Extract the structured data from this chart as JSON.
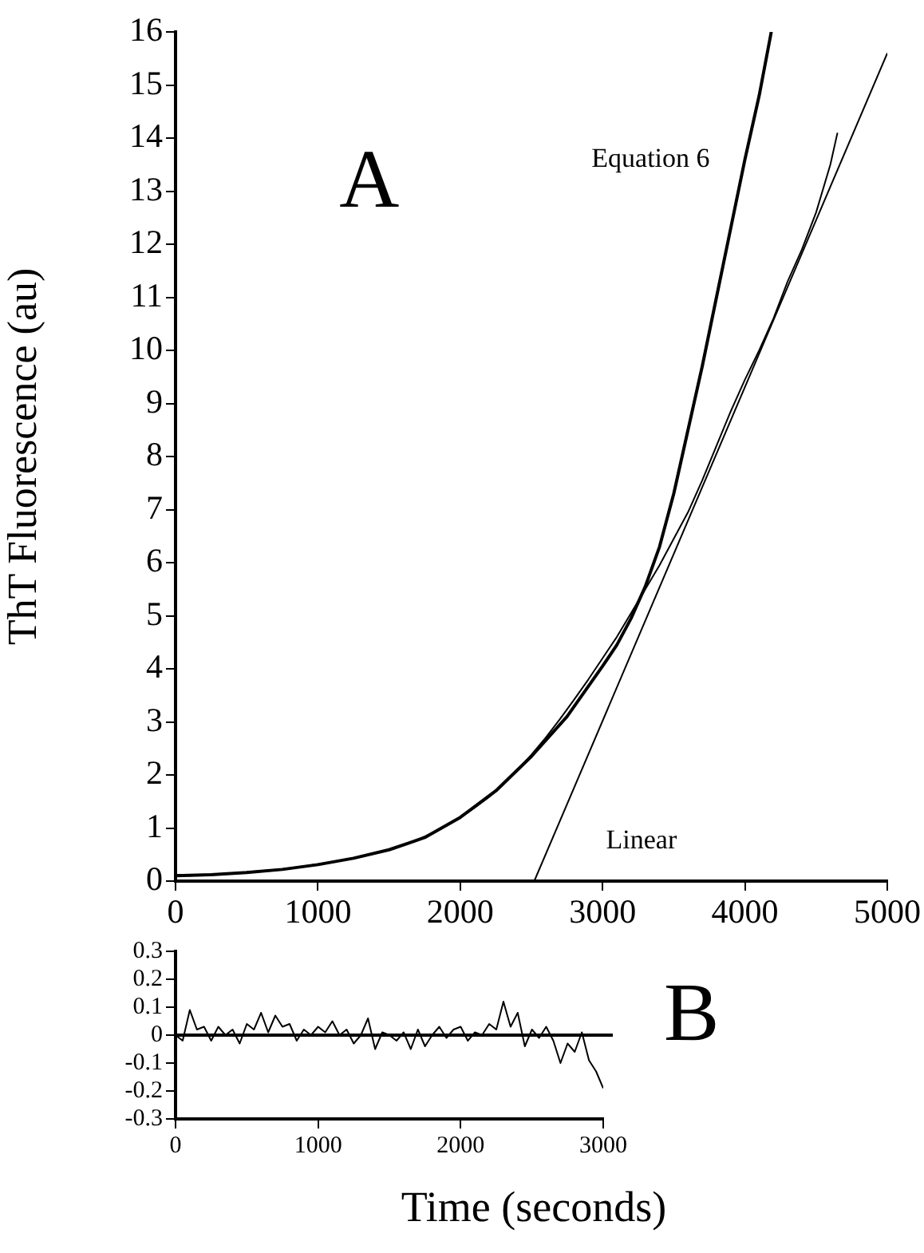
{
  "chart_data": [
    {
      "type": "line",
      "ylabel": "ThT Fluorescence (au)",
      "annotations": [
        "A"
      ],
      "xlim": [
        0,
        5000
      ],
      "xticks": [
        0,
        1000,
        2000,
        3000,
        4000,
        5000
      ],
      "ylim": [
        0,
        16
      ],
      "yticks": [
        0,
        1,
        2,
        3,
        4,
        5,
        6,
        7,
        8,
        9,
        10,
        11,
        12,
        13,
        14,
        15,
        16
      ],
      "grid": false,
      "legend": false,
      "marker": "none",
      "line_style": "solid",
      "series": [
        {
          "color": "#000000",
          "x": [
            0,
            100,
            200,
            300,
            400,
            500,
            600,
            700,
            800,
            900,
            1000,
            1100,
            1200,
            1300,
            1400,
            1500,
            1600,
            1700,
            1800,
            1900,
            2000,
            2100,
            2200,
            2300,
            2400,
            2500,
            2600,
            2700,
            2800,
            2900,
            3000,
            3100,
            3200,
            3300,
            3400,
            3500,
            3600,
            3700,
            3800,
            3900,
            4000,
            4100,
            4200,
            4300,
            4400,
            4500,
            4600,
            4650
          ],
          "values": [
            0.12,
            0.1,
            0.12,
            0.13,
            0.14,
            0.17,
            0.19,
            0.21,
            0.24,
            0.28,
            0.32,
            0.36,
            0.41,
            0.46,
            0.53,
            0.6,
            0.68,
            0.78,
            0.9,
            1.04,
            1.2,
            1.38,
            1.58,
            1.82,
            2.08,
            2.38,
            2.7,
            3.05,
            3.42,
            3.8,
            4.2,
            4.6,
            5.05,
            5.5,
            5.95,
            6.45,
            6.95,
            7.55,
            8.2,
            8.85,
            9.45,
            10.0,
            10.6,
            11.3,
            11.9,
            12.6,
            13.5,
            14.1
          ]
        },
        {
          "name": "Equation 6",
          "color": "#000000",
          "x": [
            0,
            250,
            500,
            750,
            1000,
            1250,
            1500,
            1750,
            2000,
            2250,
            2500,
            2750,
            3000,
            3100,
            3200,
            3300,
            3400,
            3500,
            3600,
            3700,
            3800,
            3900,
            4000,
            4100,
            4185
          ],
          "values": [
            0.1,
            0.12,
            0.16,
            0.22,
            0.31,
            0.43,
            0.59,
            0.82,
            1.2,
            1.7,
            2.35,
            3.1,
            4.05,
            4.45,
            4.95,
            5.55,
            6.3,
            7.3,
            8.5,
            9.7,
            11.0,
            12.3,
            13.6,
            14.8,
            16
          ]
        },
        {
          "name": "Linear",
          "color": "#000000",
          "x": [
            2520,
            5000
          ],
          "values": [
            0,
            15.6
          ]
        }
      ]
    },
    {
      "type": "line",
      "xlabel": "Time (seconds)",
      "annotations": [
        "B"
      ],
      "xlim": [
        0,
        3000
      ],
      "xticks": [
        0,
        1000,
        2000,
        3000
      ],
      "ylim": [
        -0.3,
        0.3
      ],
      "yticks": [
        0.3,
        0.2,
        0.1,
        0,
        -0.1,
        -0.2,
        -0.3
      ],
      "grid": false,
      "legend": false,
      "marker": "none",
      "line_style": "solid",
      "ref_lines": [
        {
          "axis": "y",
          "value": 0,
          "color": "#000000"
        }
      ],
      "series": [
        {
          "color": "#000000",
          "x": [
            0,
            50,
            100,
            150,
            200,
            250,
            300,
            350,
            400,
            450,
            500,
            550,
            600,
            650,
            700,
            750,
            800,
            850,
            900,
            950,
            1000,
            1050,
            1100,
            1150,
            1200,
            1250,
            1300,
            1350,
            1400,
            1450,
            1500,
            1550,
            1600,
            1650,
            1700,
            1750,
            1800,
            1850,
            1900,
            1950,
            2000,
            2050,
            2100,
            2150,
            2200,
            2250,
            2300,
            2350,
            2400,
            2450,
            2500,
            2550,
            2600,
            2650,
            2700,
            2750,
            2800,
            2850,
            2900,
            2950,
            3000
          ],
          "values": [
            0.0,
            -0.02,
            0.09,
            0.02,
            0.03,
            -0.02,
            0.03,
            0.0,
            0.02,
            -0.03,
            0.04,
            0.02,
            0.08,
            0.01,
            0.07,
            0.03,
            0.04,
            -0.02,
            0.02,
            0.0,
            0.03,
            0.01,
            0.05,
            0.0,
            0.02,
            -0.03,
            0.0,
            0.06,
            -0.05,
            0.01,
            0.0,
            -0.02,
            0.01,
            -0.05,
            0.02,
            -0.04,
            0.0,
            0.03,
            -0.01,
            0.02,
            0.03,
            -0.02,
            0.01,
            0.0,
            0.04,
            0.02,
            0.12,
            0.03,
            0.08,
            -0.04,
            0.02,
            -0.01,
            0.03,
            -0.02,
            -0.1,
            -0.03,
            -0.06,
            0.01,
            -0.09,
            -0.13,
            -0.19
          ]
        }
      ]
    }
  ]
}
